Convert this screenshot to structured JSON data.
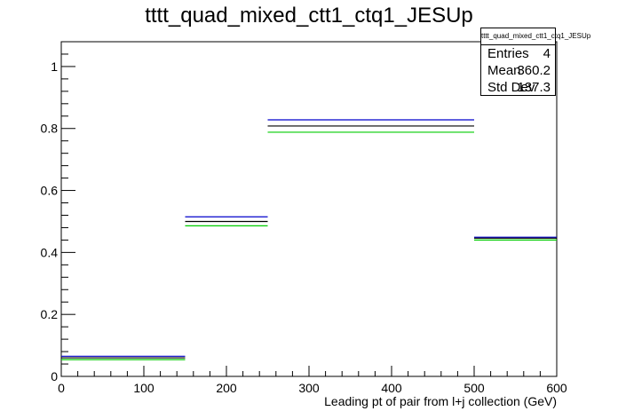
{
  "chart_data": {
    "type": "histogram",
    "title": "tttt_quad_mixed_ctt1_ctq1_JESUp",
    "xlabel": "Leading pt of pair from l+j collection (GeV)",
    "ylabel": "",
    "xlim": [
      0,
      600
    ],
    "ylim": [
      0,
      1.08
    ],
    "x_ticks": [
      "0",
      "100",
      "200",
      "300",
      "400",
      "500",
      "600"
    ],
    "y_ticks": [
      "0",
      "0.2",
      "0.4",
      "0.6",
      "0.8",
      "1"
    ],
    "grid": false,
    "bins": [
      [
        0,
        150
      ],
      [
        150,
        250
      ],
      [
        250,
        500
      ],
      [
        500,
        600
      ]
    ],
    "series": [
      {
        "color": "#0000cc",
        "values": [
          0.065,
          0.515,
          0.828,
          0.449
        ]
      },
      {
        "color": "#000000",
        "values": [
          0.06,
          0.5,
          0.808,
          0.446
        ]
      },
      {
        "color": "#00cc00",
        "values": [
          0.054,
          0.486,
          0.788,
          0.44
        ]
      }
    ]
  },
  "stats_box": {
    "title": "tttt_quad_mixed_ctt1_ctq1_JESUp",
    "entries_label": "Entries",
    "entries_value": "4",
    "mean_label": "Mean",
    "mean_value": "360.2",
    "stddev_label": "Std Dev",
    "stddev_value": "137.3"
  }
}
